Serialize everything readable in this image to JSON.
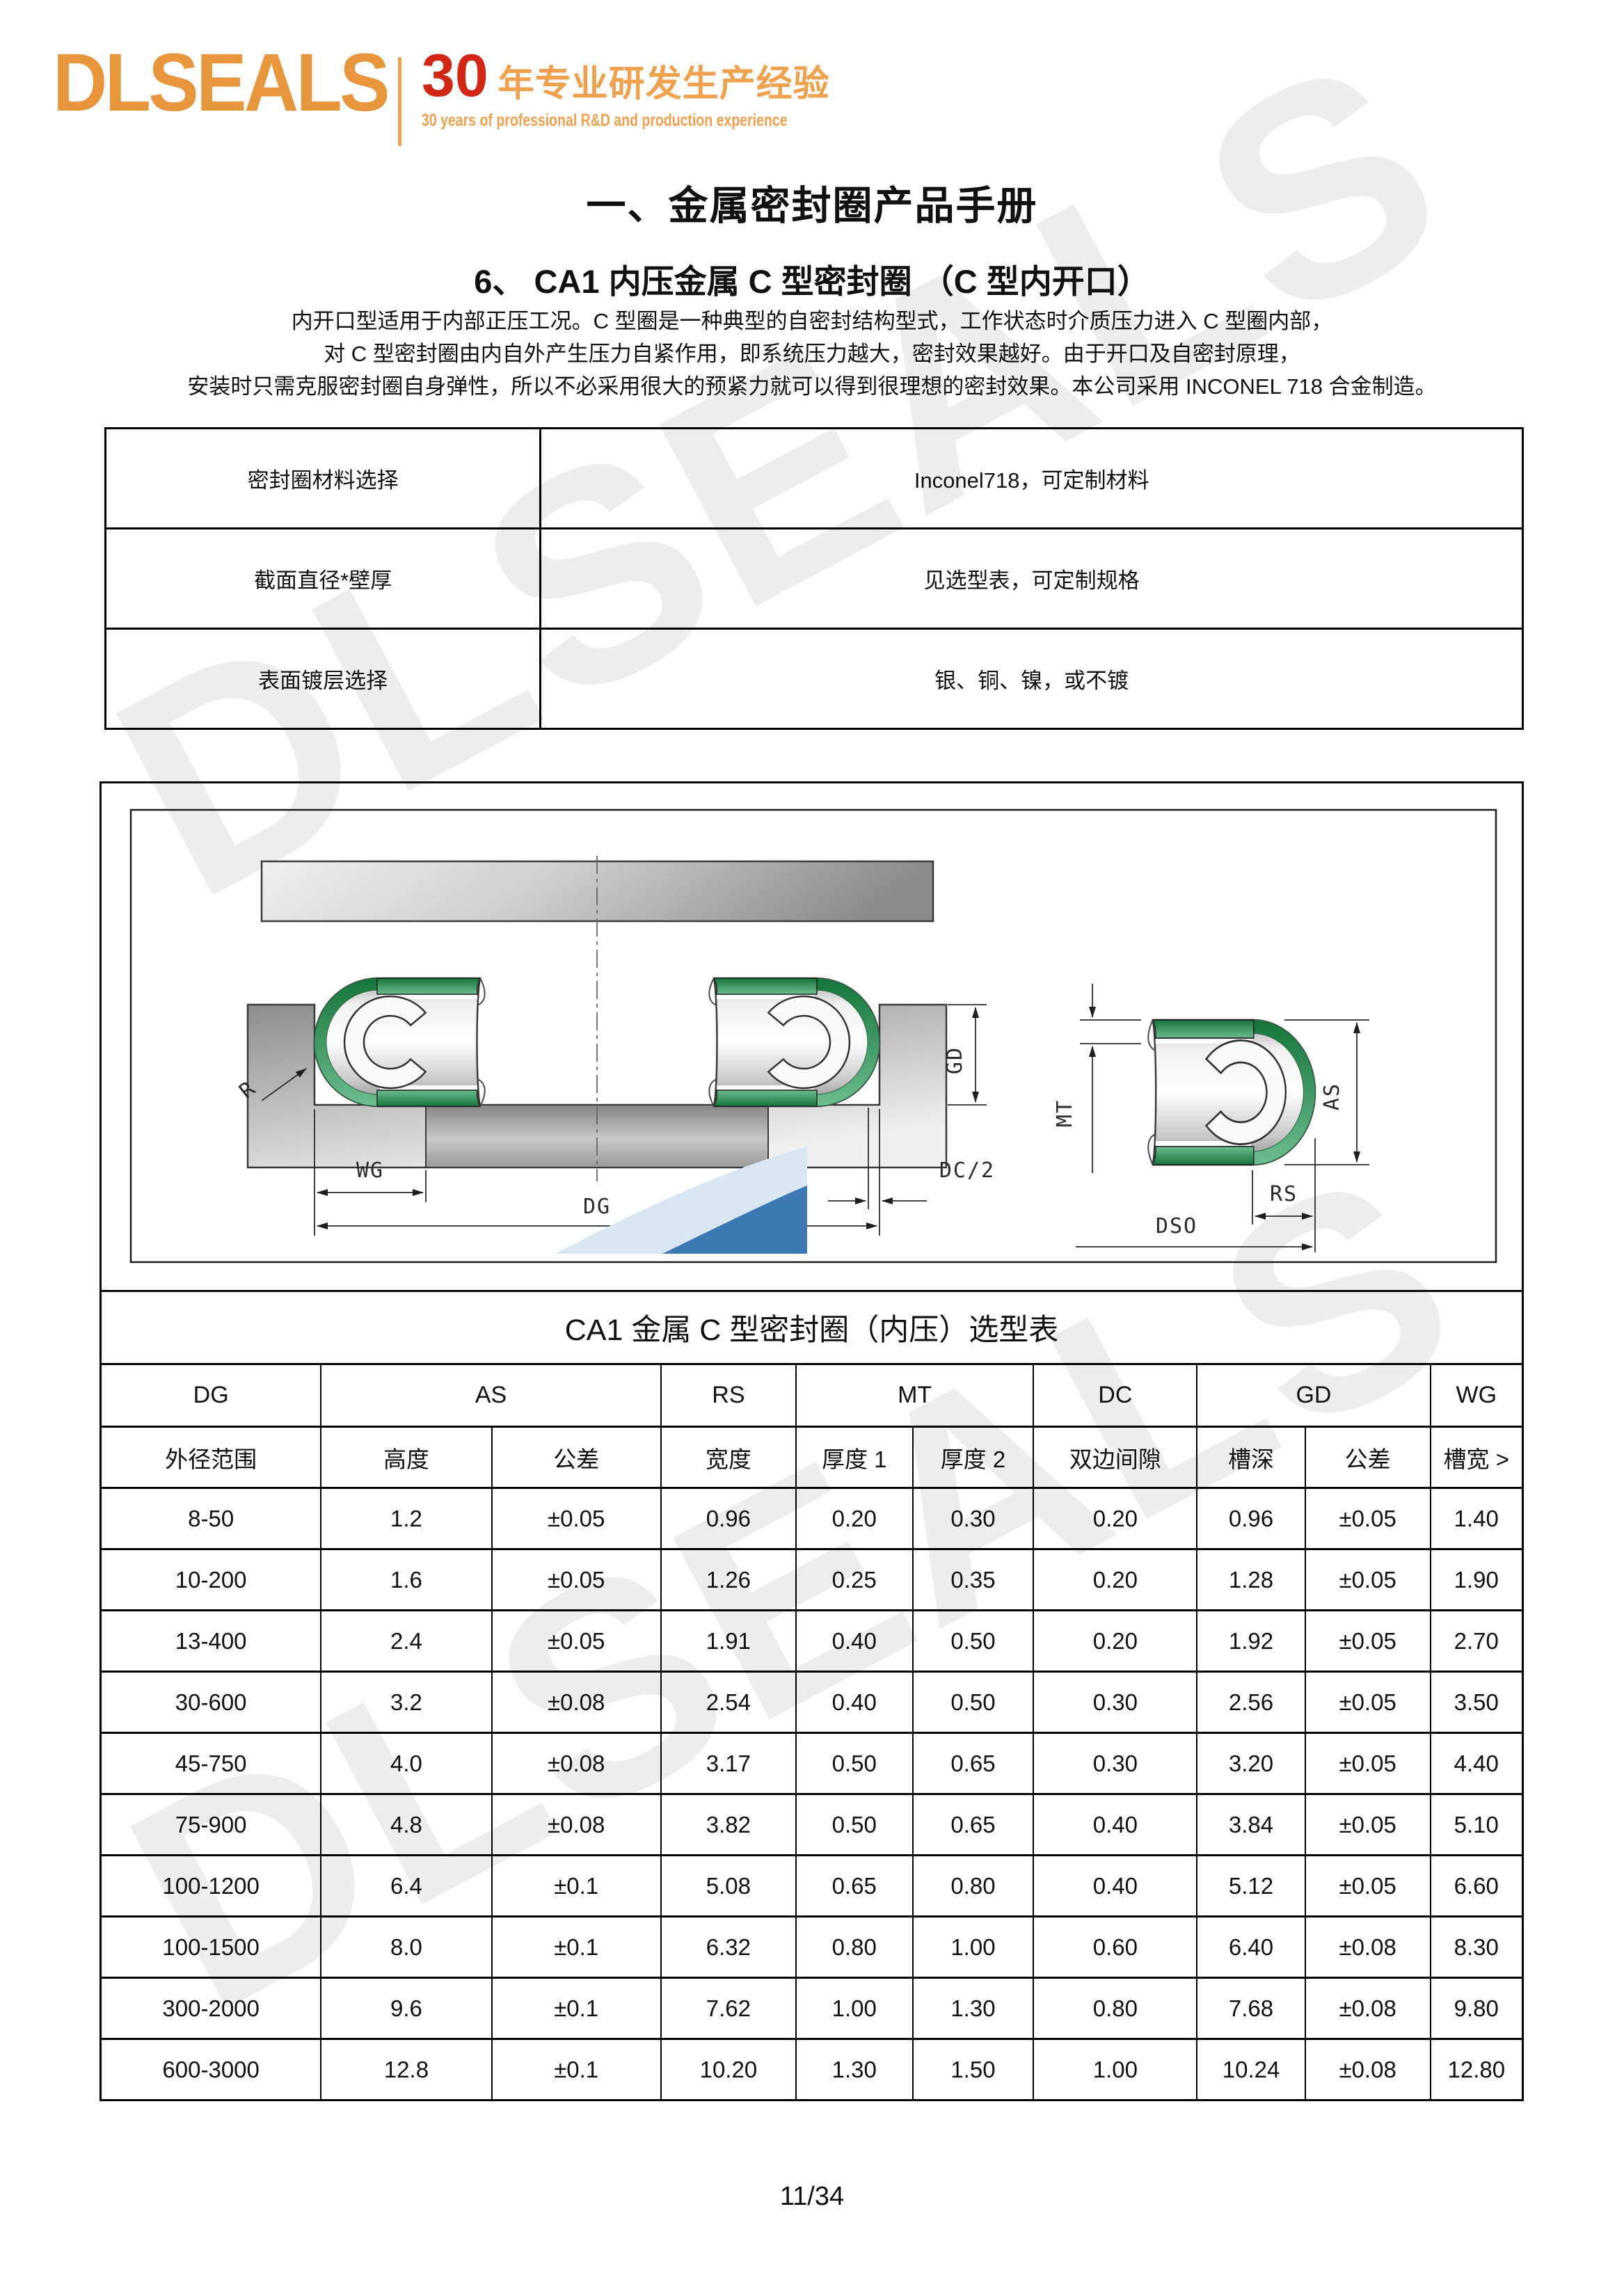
{
  "header": {
    "logo_text": "DLSEALS",
    "years_number": "30",
    "tagline_cn": "年专业研发生产经验",
    "tagline_en": "30 years of professional R&D and production experience"
  },
  "titles": {
    "main": "一、金属密封圈产品手册",
    "section": "6、 CA1 内压金属 C 型密封圈 （C 型内开口）"
  },
  "description": {
    "line1": "内开口型适用于内部正压工况。C 型圈是一种典型的自密封结构型式，工作状态时介质压力进入 C 型圈内部，",
    "line2": "对 C 型密封圈由内自外产生压力自紧作用，即系统压力越大，密封效果越好。由于开口及自密封原理，",
    "line3": "安装时只需克服密封圈自身弹性，所以不必采用很大的预紧力就可以得到很理想的密封效果。本公司采用 INCONEL 718 合金制造。"
  },
  "materials_table": {
    "rows": [
      {
        "label": "密封圈材料选择",
        "value": "Inconel718，可定制材料"
      },
      {
        "label": "截面直径*壁厚",
        "value": "见选型表，可定制规格"
      },
      {
        "label": "表面镀层选择",
        "value": "银、铜、镍，或不镀"
      }
    ]
  },
  "diagram": {
    "labels": {
      "r": "R",
      "wg": "WG",
      "dg": "DG",
      "dc2": "DC/2",
      "gd": "GD",
      "mt": "MT",
      "as": "AS",
      "rs": "RS",
      "dso": "DSO"
    }
  },
  "selection_table": {
    "title": "CA1 金属 C 型密封圈（内压）选型表",
    "group_headers": [
      {
        "label": "DG",
        "span": 1
      },
      {
        "label": "AS",
        "span": 2
      },
      {
        "label": "RS",
        "span": 1
      },
      {
        "label": "MT",
        "span": 2
      },
      {
        "label": "DC",
        "span": 1
      },
      {
        "label": "GD",
        "span": 2
      },
      {
        "label": "WG",
        "span": 1
      }
    ],
    "sub_headers": [
      "外径范围",
      "高度",
      "公差",
      "宽度",
      "厚度 1",
      "厚度 2",
      "双边间隙",
      "槽深",
      "公差",
      "槽宽 >"
    ],
    "rows": [
      [
        "8-50",
        "1.2",
        "±0.05",
        "0.96",
        "0.20",
        "0.30",
        "0.20",
        "0.96",
        "±0.05",
        "1.40"
      ],
      [
        "10-200",
        "1.6",
        "±0.05",
        "1.26",
        "0.25",
        "0.35",
        "0.20",
        "1.28",
        "±0.05",
        "1.90"
      ],
      [
        "13-400",
        "2.4",
        "±0.05",
        "1.91",
        "0.40",
        "0.50",
        "0.20",
        "1.92",
        "±0.05",
        "2.70"
      ],
      [
        "30-600",
        "3.2",
        "±0.08",
        "2.54",
        "0.40",
        "0.50",
        "0.30",
        "2.56",
        "±0.05",
        "3.50"
      ],
      [
        "45-750",
        "4.0",
        "±0.08",
        "3.17",
        "0.50",
        "0.65",
        "0.30",
        "3.20",
        "±0.05",
        "4.40"
      ],
      [
        "75-900",
        "4.8",
        "±0.08",
        "3.82",
        "0.50",
        "0.65",
        "0.40",
        "3.84",
        "±0.05",
        "5.10"
      ],
      [
        "100-1200",
        "6.4",
        "±0.1",
        "5.08",
        "0.65",
        "0.80",
        "0.40",
        "5.12",
        "±0.05",
        "6.60"
      ],
      [
        "100-1500",
        "8.0",
        "±0.1",
        "6.32",
        "0.80",
        "1.00",
        "0.60",
        "6.40",
        "±0.08",
        "8.30"
      ],
      [
        "300-2000",
        "9.6",
        "±0.1",
        "7.62",
        "1.00",
        "1.30",
        "0.80",
        "7.68",
        "±0.08",
        "9.80"
      ],
      [
        "600-3000",
        "12.8",
        "±0.1",
        "10.20",
        "1.30",
        "1.50",
        "1.00",
        "10.24",
        "±0.08",
        "12.80"
      ]
    ]
  },
  "footer": {
    "page_number": "11/34"
  },
  "watermark": {
    "text": "DLSEALS"
  },
  "colors": {
    "logo_orange": "#E8963C",
    "badge_orange": "#F0A14D",
    "badge_red": "#D42614",
    "seal_green": "#1E7E3E",
    "swoosh_blue_dark": "#3C78B4",
    "swoosh_blue_light": "#D9E7F3"
  }
}
